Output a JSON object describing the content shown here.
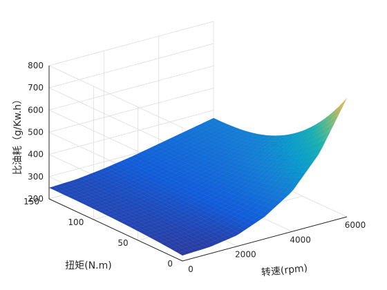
{
  "chart_data": {
    "type": "surface",
    "xlabel": "转速(rpm)",
    "ylabel": "扭矩(N.m)",
    "zlabel": "比油耗（g/Kw.h）",
    "xlim": [
      0,
      6000
    ],
    "ylim": [
      0,
      150
    ],
    "zlim": [
      200,
      800
    ],
    "x_ticks": [
      0,
      2000,
      4000,
      6000
    ],
    "y_ticks": [
      0,
      50,
      100,
      150
    ],
    "z_ticks": [
      200,
      300,
      400,
      500,
      600,
      700,
      800
    ],
    "grid": true,
    "colormap": "parula",
    "surface_corners": [
      {
        "speed_rpm": 0,
        "torque_nm": 150,
        "bsfc": 250
      },
      {
        "speed_rpm": 0,
        "torque_nm": 0,
        "bsfc": 225
      },
      {
        "speed_rpm": 6000,
        "torque_nm": 150,
        "bsfc": 365
      },
      {
        "speed_rpm": 6000,
        "torque_nm": 0,
        "bsfc": 735
      }
    ],
    "surface_profiles": {
      "speed_rpm": [
        0,
        1000,
        2000,
        3000,
        4000,
        5000,
        6000
      ],
      "bsfc_at_150_nm": [
        250,
        255,
        270,
        290,
        315,
        340,
        365
      ],
      "bsfc_at_0_nm": [
        225,
        230,
        250,
        300,
        380,
        520,
        735
      ],
      "bsfc_at_max_speed_by_torque": {
        "torque_nm": [
          0,
          25,
          50,
          75,
          100,
          125,
          150
        ],
        "bsfc": [
          735,
          640,
          480,
          390,
          360,
          360,
          365
        ]
      },
      "sharp_rise_near_min_torque": true
    }
  }
}
